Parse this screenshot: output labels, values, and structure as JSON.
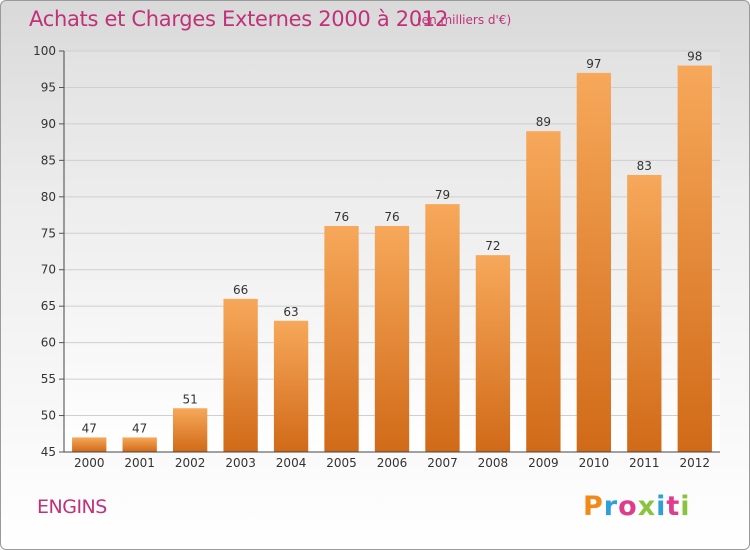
{
  "header": {
    "title": "Achats et Charges Externes 2000 à 2012",
    "subtitle": "(en milliers d'€)"
  },
  "footer": {
    "commune": "ENGINS",
    "logo_letters": [
      "P",
      "r",
      "o",
      "x",
      "i",
      "t",
      "i"
    ]
  },
  "colors": {
    "bar_top": "#f7a85a",
    "bar_bottom": "#d06a18",
    "title": "#c0317a"
  },
  "chart_data": {
    "type": "bar",
    "title": "Achats et Charges Externes 2000 à 2012",
    "subtitle": "(en milliers d'€)",
    "categories": [
      "2000",
      "2001",
      "2002",
      "2003",
      "2004",
      "2005",
      "2006",
      "2007",
      "2008",
      "2009",
      "2010",
      "2011",
      "2012"
    ],
    "values": [
      47,
      47,
      51,
      66,
      63,
      76,
      76,
      79,
      72,
      89,
      97,
      83,
      98
    ],
    "ylim": [
      45,
      100
    ],
    "yticks": [
      45,
      50,
      55,
      60,
      65,
      70,
      75,
      80,
      85,
      90,
      95,
      100
    ],
    "grid": true
  }
}
